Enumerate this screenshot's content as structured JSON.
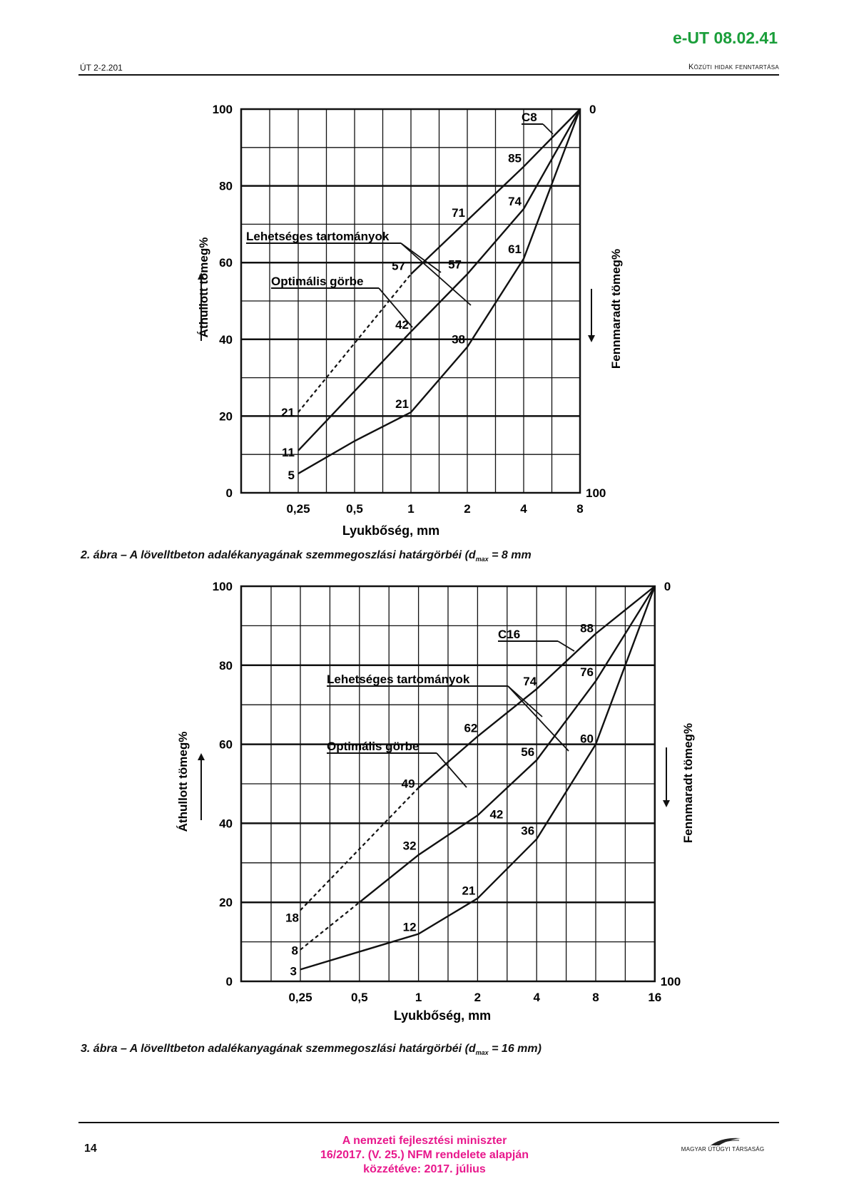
{
  "header": {
    "code": "e-UT 08.02.41",
    "left": "ÚT 2-2.201",
    "right": "Közúti hidak fenntartása"
  },
  "charts": [
    {
      "y_left_label": "Áthullott tömeg%",
      "y_right_label": "Fennmaradt tömeg%",
      "x_label": "Lyukbőség, mm",
      "y_ticks_left": [
        "100",
        "80",
        "60",
        "40",
        "20",
        "0"
      ],
      "y_ticks_right": [
        "0",
        "100"
      ],
      "x_ticks": [
        "0,25",
        "0,5",
        "1",
        "2",
        "4",
        "8"
      ],
      "class_label": "C8",
      "annotation_range": "Lehetséges tartományok",
      "annotation_optimal": "Optimális görbe",
      "point_labels": [
        "85",
        "71",
        "57",
        "21",
        "74",
        "57",
        "42",
        "11",
        "61",
        "38",
        "21",
        "5"
      ]
    },
    {
      "y_left_label": "Áthullott tömeg%",
      "y_right_label": "Fennmaradt tömeg%",
      "x_label": "Lyukbőség, mm",
      "y_ticks_left": [
        "100",
        "80",
        "60",
        "40",
        "20",
        "0"
      ],
      "y_ticks_right": [
        "0",
        "100"
      ],
      "x_ticks": [
        "0,25",
        "0,5",
        "1",
        "2",
        "4",
        "8",
        "16"
      ],
      "class_label": "C16",
      "annotation_range": "Lehetséges tartományok",
      "annotation_optimal": "Optimális görbe",
      "point_labels": [
        "88",
        "74",
        "62",
        "49",
        "18",
        "76",
        "56",
        "42",
        "32",
        "8",
        "60",
        "36",
        "21",
        "12",
        "3"
      ]
    }
  ],
  "chart_data": [
    {
      "type": "line",
      "x": [
        "0,25",
        "0,5",
        "1",
        "2",
        "4",
        "8"
      ],
      "xlabel": "Lyukbőség, mm",
      "ylabel": "Áthullott tömeg%",
      "y2label": "Fennmaradt tömeg%",
      "ylim": [
        0,
        100
      ],
      "y2lim": [
        100,
        0
      ],
      "grid": true,
      "series": [
        {
          "values": [
            21,
            39,
            57,
            71,
            85,
            100
          ]
        },
        {
          "values": [
            11,
            26.5,
            42,
            57,
            74,
            100
          ]
        },
        {
          "values": [
            5,
            13.5,
            21,
            38,
            61,
            100
          ]
        }
      ],
      "annotations": [
        "C8",
        "Lehetséges tartományok",
        "Optimális görbe"
      ]
    },
    {
      "type": "line",
      "x": [
        "0,25",
        "0,5",
        "1",
        "2",
        "4",
        "8",
        "16"
      ],
      "xlabel": "Lyukbőség, mm",
      "ylabel": "Áthullott tömeg%",
      "y2label": "Fennmaradt tömeg%",
      "ylim": [
        0,
        100
      ],
      "y2lim": [
        100,
        0
      ],
      "grid": true,
      "series": [
        {
          "values": [
            18,
            33.5,
            49,
            62,
            74,
            88,
            100
          ]
        },
        {
          "values": [
            8,
            20,
            32,
            42,
            56,
            76,
            100
          ]
        },
        {
          "values": [
            3,
            7.5,
            12,
            21,
            36,
            60,
            100
          ]
        }
      ],
      "annotations": [
        "C16",
        "Lehetséges tartományok",
        "Optimális görbe"
      ]
    }
  ],
  "captions": {
    "fig2_prefix": "2. ábra – A lövelltbeton adalékanyagának szemmegoszlási határgörbéi (d",
    "fig2_sub": "max",
    "fig2_suffix": " = 8 mm",
    "fig3_prefix": "3. ábra – A lövelltbeton adalékanyagának szemmegoszlási határgörbéi (d",
    "fig3_sub": "max",
    "fig3_suffix": " = 16 mm)"
  },
  "footer": {
    "page": "14",
    "line1": "A nemzeti fejlesztési miniszter",
    "line2": "16/2017. (V. 25.) NFM rendelete alapján",
    "line3": "közzétéve: 2017. július",
    "logo_text": "MAGYAR ÚTÜGYI TÁRSASÁG"
  }
}
